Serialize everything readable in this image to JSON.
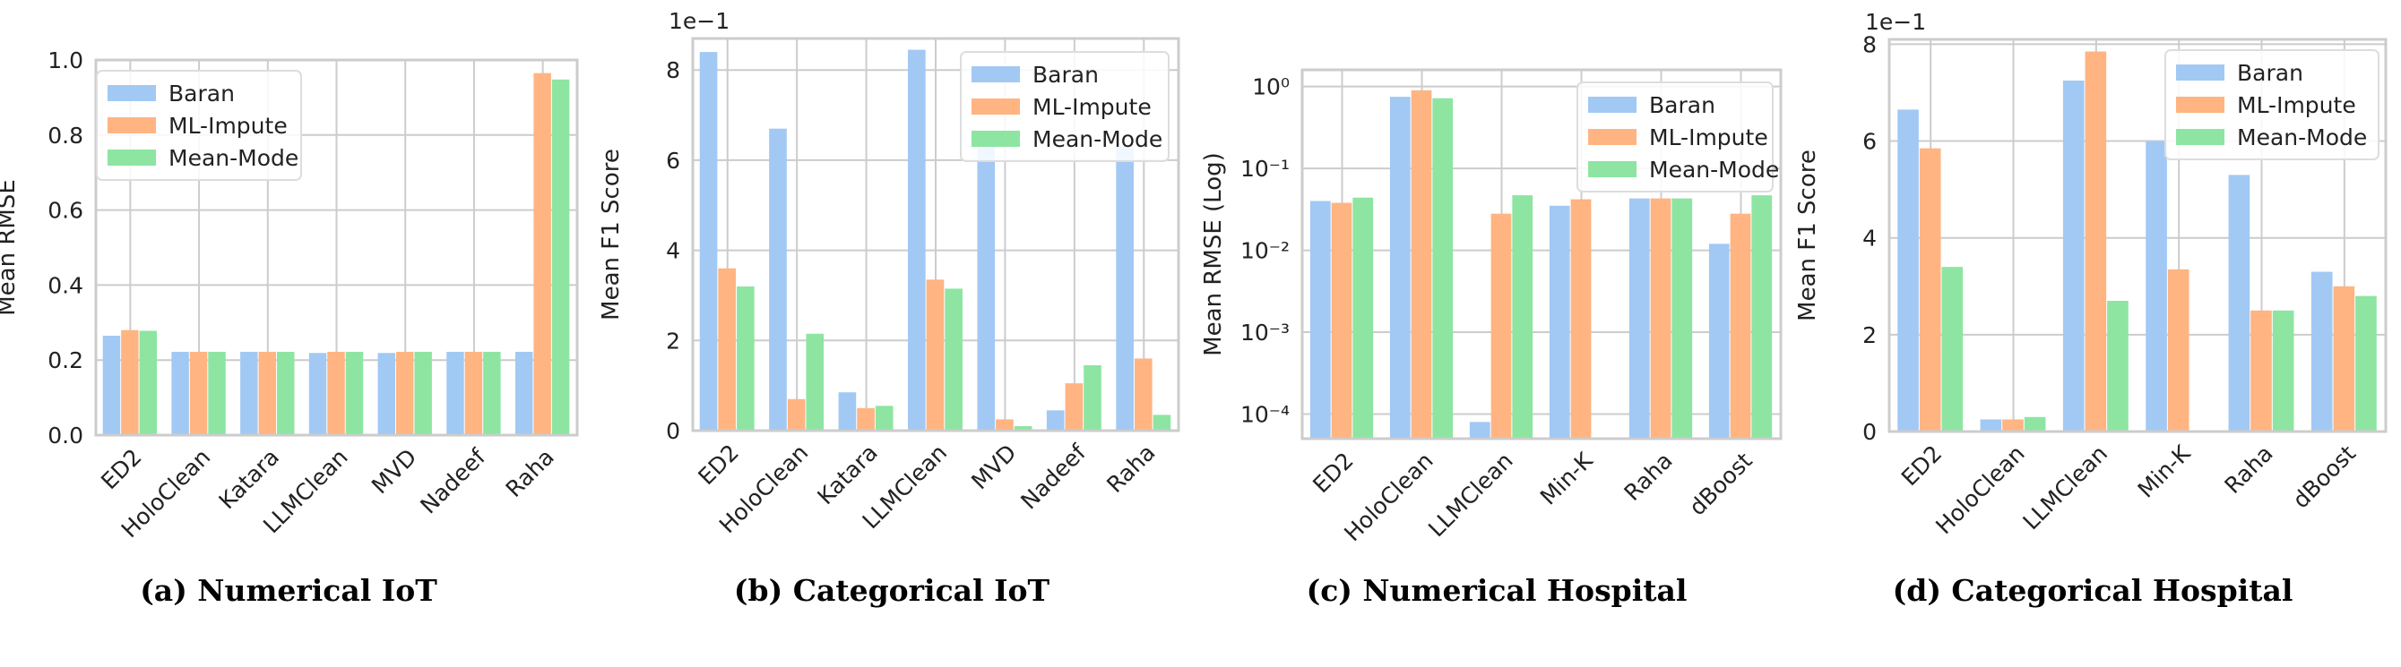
{
  "colors": {
    "Baran": "#a1c9f4",
    "ML-Impute": "#ffb482",
    "Mean-Mode": "#8de5a1",
    "grid": "#cccccc",
    "frame": "#cccccc"
  },
  "chart_data": [
    {
      "type": "bar",
      "caption": "(a) Numerical IoT",
      "ylabel": "Mean RMSE",
      "xlabel": "",
      "scale": "linear",
      "ylim": [
        0,
        1.0
      ],
      "yticks": [
        0.0,
        0.2,
        0.4,
        0.6,
        0.8,
        1.0
      ],
      "ytick_labels": [
        "0.0",
        "0.2",
        "0.4",
        "0.6",
        "0.8",
        "1.0"
      ],
      "offset_label": "",
      "categories": [
        "ED2",
        "HoloClean",
        "Katara",
        "LLMClean",
        "MVD",
        "Nadeef",
        "Raha"
      ],
      "series": [
        {
          "name": "Baran",
          "values": [
            0.265,
            0.222,
            0.222,
            0.219,
            0.219,
            0.222,
            0.222
          ]
        },
        {
          "name": "ML-Impute",
          "values": [
            0.28,
            0.222,
            0.222,
            0.222,
            0.222,
            0.222,
            0.965
          ]
        },
        {
          "name": "Mean-Mode",
          "values": [
            0.278,
            0.222,
            0.222,
            0.222,
            0.222,
            0.222,
            0.948
          ]
        }
      ],
      "grid": true,
      "legend": "top-left"
    },
    {
      "type": "bar",
      "caption": "(b) Categorical IoT",
      "ylabel": "Mean F1 Score",
      "xlabel": "",
      "scale": "linear",
      "ylim": [
        0,
        8.7
      ],
      "yticks": [
        0,
        2,
        4,
        6,
        8
      ],
      "ytick_labels": [
        "0",
        "2",
        "4",
        "6",
        "8"
      ],
      "offset_label": "1e−1",
      "categories": [
        "ED2",
        "HoloClean",
        "Katara",
        "LLMClean",
        "MVD",
        "Nadeef",
        "Raha"
      ],
      "series": [
        {
          "name": "Baran",
          "values": [
            8.4,
            6.7,
            0.85,
            8.45,
            6.5,
            0.45,
            6.3
          ]
        },
        {
          "name": "ML-Impute",
          "values": [
            3.6,
            0.7,
            0.5,
            3.35,
            0.25,
            1.05,
            1.6
          ]
        },
        {
          "name": "Mean-Mode",
          "values": [
            3.2,
            2.15,
            0.55,
            3.15,
            0.1,
            1.45,
            0.35
          ]
        }
      ],
      "grid": true,
      "legend": "top-right"
    },
    {
      "type": "bar",
      "caption": "(c) Numerical Hospital",
      "ylabel": "Mean RMSE (Log)",
      "xlabel": "",
      "scale": "log",
      "ylim": [
        5e-05,
        1.6
      ],
      "yticks": [
        0.0001,
        0.001,
        0.01,
        0.1,
        1
      ],
      "ytick_labels": [
        "10⁻⁴",
        "10⁻³",
        "10⁻²",
        "10⁻¹",
        "10⁰"
      ],
      "offset_label": "",
      "categories": [
        "ED2",
        "HoloClean",
        "LLMClean",
        "Min-K",
        "Raha",
        "dBoost"
      ],
      "series": [
        {
          "name": "Baran",
          "values": [
            0.04,
            0.75,
            8e-05,
            0.035,
            0.043,
            0.012
          ]
        },
        {
          "name": "ML-Impute",
          "values": [
            0.038,
            0.9,
            0.028,
            0.042,
            0.043,
            0.028
          ]
        },
        {
          "name": "Mean-Mode",
          "values": [
            0.044,
            0.72,
            0.047,
            null,
            0.043,
            0.047
          ]
        }
      ],
      "grid": true,
      "legend": "top-right"
    },
    {
      "type": "bar",
      "caption": "(d) Categorical Hospital",
      "ylabel": "Mean F1 Score",
      "xlabel": "",
      "scale": "linear",
      "ylim": [
        0,
        8.1
      ],
      "yticks": [
        0,
        2,
        4,
        6,
        8
      ],
      "ytick_labels": [
        "0",
        "2",
        "4",
        "6",
        "8"
      ],
      "offset_label": "1e−1",
      "categories": [
        "ED2",
        "HoloClean",
        "LLMClean",
        "Min-K",
        "Raha",
        "dBoost"
      ],
      "series": [
        {
          "name": "Baran",
          "values": [
            6.65,
            0.25,
            7.25,
            6.0,
            5.3,
            3.3
          ]
        },
        {
          "name": "ML-Impute",
          "values": [
            5.85,
            0.25,
            7.85,
            3.35,
            2.5,
            3.0
          ]
        },
        {
          "name": "Mean-Mode",
          "values": [
            3.4,
            0.3,
            2.7,
            null,
            2.5,
            2.8
          ]
        }
      ],
      "grid": true,
      "legend": "top-right"
    }
  ]
}
